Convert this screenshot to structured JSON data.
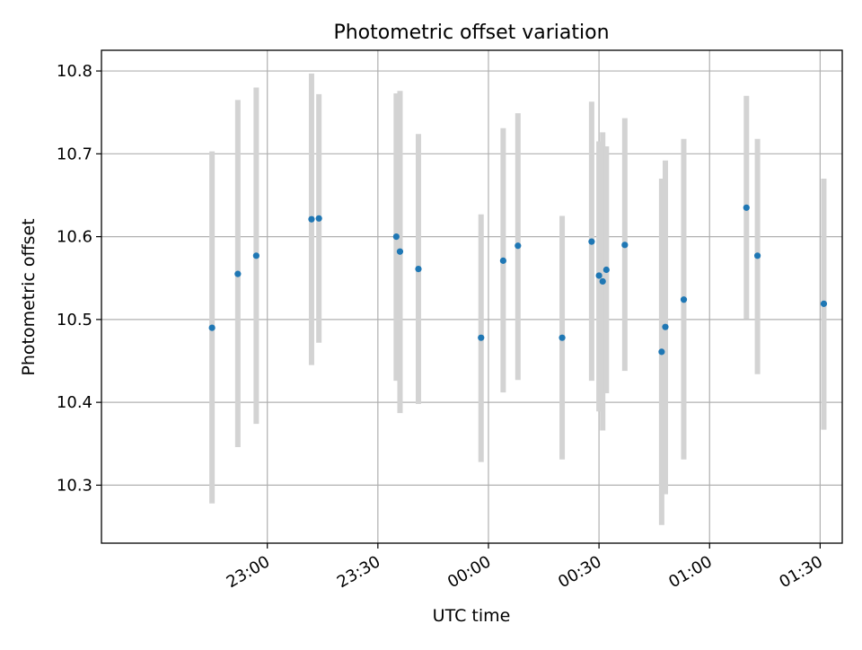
{
  "chart_data": {
    "type": "scatter",
    "title": "Photometric offset variation",
    "xlabel": "UTC time",
    "ylabel": "Photometric offset",
    "xlim_minutes_from_midnight": [
      -105,
      96
    ],
    "ylim": [
      10.23,
      10.825
    ],
    "x_ticks": [
      {
        "label": "23:00",
        "value": -60
      },
      {
        "label": "23:30",
        "value": -30
      },
      {
        "label": "00:00",
        "value": 0
      },
      {
        "label": "00:30",
        "value": 30
      },
      {
        "label": "01:00",
        "value": 60
      },
      {
        "label": "01:30",
        "value": 90
      }
    ],
    "y_ticks": [
      10.3,
      10.4,
      10.5,
      10.6,
      10.7,
      10.8
    ],
    "grid": true,
    "colors": {
      "point": "#1f77b4",
      "errorbar": "#d3d3d3",
      "grid": "#b0b0b0"
    },
    "points": [
      {
        "time": "22:45",
        "y": 10.49,
        "ylow": 10.278,
        "yhigh": 10.703
      },
      {
        "time": "22:52",
        "y": 10.555,
        "ylow": 10.346,
        "yhigh": 10.765
      },
      {
        "time": "22:57",
        "y": 10.577,
        "ylow": 10.374,
        "yhigh": 10.78
      },
      {
        "time": "23:12",
        "y": 10.621,
        "ylow": 10.445,
        "yhigh": 10.797
      },
      {
        "time": "23:14",
        "y": 10.622,
        "ylow": 10.472,
        "yhigh": 10.772
      },
      {
        "time": "23:35",
        "y": 10.6,
        "ylow": 10.426,
        "yhigh": 10.773
      },
      {
        "time": "23:36",
        "y": 10.582,
        "ylow": 10.387,
        "yhigh": 10.776
      },
      {
        "time": "23:41",
        "y": 10.561,
        "ylow": 10.398,
        "yhigh": 10.724
      },
      {
        "time": "23:58",
        "y": 10.478,
        "ylow": 10.328,
        "yhigh": 10.627
      },
      {
        "time": "00:04",
        "y": 10.571,
        "ylow": 10.412,
        "yhigh": 10.731
      },
      {
        "time": "00:08",
        "y": 10.589,
        "ylow": 10.427,
        "yhigh": 10.749
      },
      {
        "time": "00:20",
        "y": 10.478,
        "ylow": 10.331,
        "yhigh": 10.625
      },
      {
        "time": "00:28",
        "y": 10.594,
        "ylow": 10.426,
        "yhigh": 10.763
      },
      {
        "time": "00:30",
        "y": 10.553,
        "ylow": 10.389,
        "yhigh": 10.715
      },
      {
        "time": "00:31",
        "y": 10.546,
        "ylow": 10.366,
        "yhigh": 10.726
      },
      {
        "time": "00:32",
        "y": 10.56,
        "ylow": 10.411,
        "yhigh": 10.709
      },
      {
        "time": "00:37",
        "y": 10.59,
        "ylow": 10.438,
        "yhigh": 10.743
      },
      {
        "time": "00:47",
        "y": 10.461,
        "ylow": 10.252,
        "yhigh": 10.67
      },
      {
        "time": "00:48",
        "y": 10.491,
        "ylow": 10.289,
        "yhigh": 10.692
      },
      {
        "time": "00:53",
        "y": 10.524,
        "ylow": 10.331,
        "yhigh": 10.718
      },
      {
        "time": "01:10",
        "y": 10.635,
        "ylow": 10.501,
        "yhigh": 10.77
      },
      {
        "time": "01:13",
        "y": 10.577,
        "ylow": 10.434,
        "yhigh": 10.718
      },
      {
        "time": "01:31",
        "y": 10.519,
        "ylow": 10.367,
        "yhigh": 10.67
      }
    ]
  }
}
